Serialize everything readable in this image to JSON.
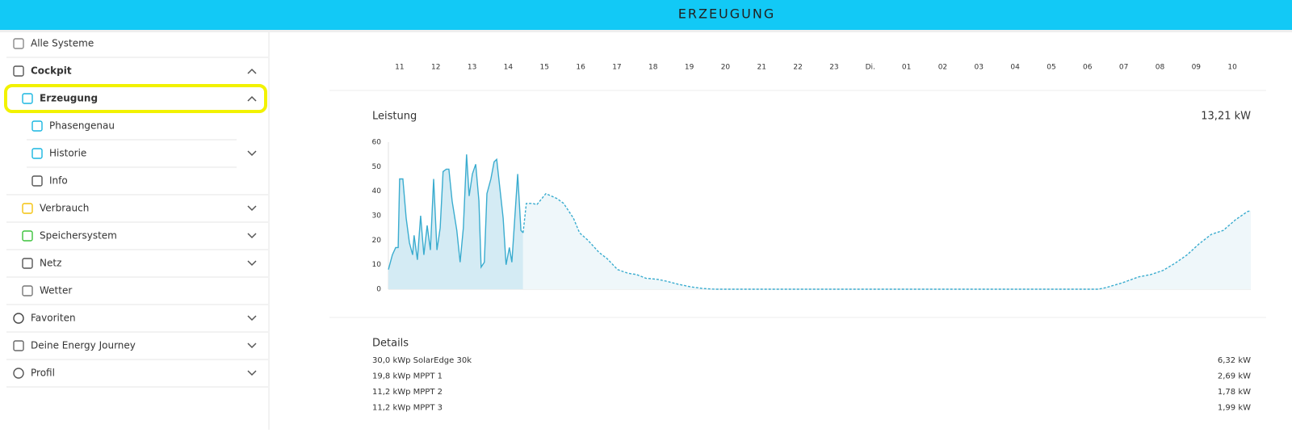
{
  "header": {
    "title": "ERZEUGUNG"
  },
  "sidebar": {
    "items": [
      "Alle Systeme",
      "Cockpit",
      "Erzeugung",
      "Phasengenau",
      "Historie",
      "Info",
      "Verbrauch",
      "Speichersystem",
      "Netz",
      "Wetter",
      "Favoriten",
      "Deine Energy Journey",
      "Profil"
    ]
  },
  "chart_data": {
    "type": "line",
    "title": "Leistung",
    "current_value": "13,21 kW",
    "xlim": [
      10.69,
      34.51
    ],
    "xticks": [
      11,
      12,
      13,
      14,
      15,
      16,
      17,
      18,
      19,
      20,
      21,
      22,
      23,
      {
        "value": 24,
        "label": "Di."
      },
      {
        "value": 25,
        "label": "01"
      },
      {
        "value": 26,
        "label": "02"
      },
      {
        "value": 27,
        "label": "03"
      },
      {
        "value": 28,
        "label": "04"
      },
      {
        "value": 29,
        "label": "05"
      },
      {
        "value": 30,
        "label": "06"
      },
      {
        "value": 31,
        "label": "07"
      },
      {
        "value": 32,
        "label": "08"
      },
      {
        "value": 33,
        "label": "09"
      },
      {
        "value": 34,
        "label": "10"
      }
    ],
    "ylim": [
      0,
      60
    ],
    "yticks": [
      0,
      10,
      20,
      30,
      40,
      50,
      60
    ],
    "series": [
      {
        "color": "#3aaccf",
        "fill": "#d4ebf4",
        "dashed": false,
        "x": [
          10.69,
          10.8,
          10.89,
          10.96,
          11.0,
          11.09,
          11.18,
          11.27,
          11.36,
          11.4,
          11.49,
          11.58,
          11.67,
          11.76,
          11.85,
          11.94,
          12.03,
          12.12,
          12.2,
          12.29,
          12.36,
          12.45,
          12.58,
          12.67,
          12.76,
          12.85,
          12.92,
          13.01,
          13.1,
          13.19,
          13.25,
          13.34,
          13.41,
          13.52,
          13.61,
          13.68,
          13.77,
          13.86,
          13.94,
          14.03,
          14.1,
          14.26,
          14.35,
          14.41
        ],
        "values": [
          8,
          14,
          17,
          17,
          45,
          45,
          29,
          19,
          14,
          22,
          12,
          30,
          14,
          26,
          16,
          45,
          16,
          25,
          48,
          49,
          49,
          36,
          24,
          11,
          25,
          55,
          38,
          47,
          51,
          36,
          9,
          11,
          39,
          45,
          52,
          53,
          41,
          29,
          10,
          17,
          11,
          47,
          24,
          23
        ]
      },
      {
        "color": "#3aaccf",
        "fill": "#eff7fa",
        "dashed": true,
        "x": [
          14.41,
          14.5,
          14.68,
          14.79,
          15.04,
          15.35,
          15.53,
          15.8,
          15.97,
          16.2,
          16.51,
          16.73,
          17.02,
          17.31,
          17.54,
          17.8,
          18.14,
          18.36,
          18.7,
          19.03,
          19.37,
          19.7,
          30.3,
          30.52,
          30.96,
          31.41,
          31.75,
          32.08,
          32.41,
          32.75,
          33.08,
          33.42,
          33.75,
          34.09,
          34.42,
          34.51
        ],
        "values": [
          23,
          35,
          35,
          34.5,
          39,
          37,
          35,
          29,
          23,
          20,
          15,
          12.5,
          8,
          6.5,
          6,
          4.5,
          4,
          3.3,
          2,
          1,
          0.3,
          0,
          0,
          0.7,
          2.6,
          5,
          6,
          7.6,
          10.5,
          14,
          18.5,
          22.4,
          24,
          28.4,
          31.7,
          32
        ]
      }
    ]
  },
  "details": {
    "title": "Details",
    "rows": [
      [
        "30,0 kWp SolarEdge 30k",
        "6,32 kW"
      ],
      [
        "19,8 kWp MPPT 1",
        "2,69 kW"
      ],
      [
        "11,2 kWp MPPT 2",
        "1,78 kW"
      ],
      [
        "11,2 kWp MPPT 3",
        "1,99 kW"
      ]
    ]
  }
}
